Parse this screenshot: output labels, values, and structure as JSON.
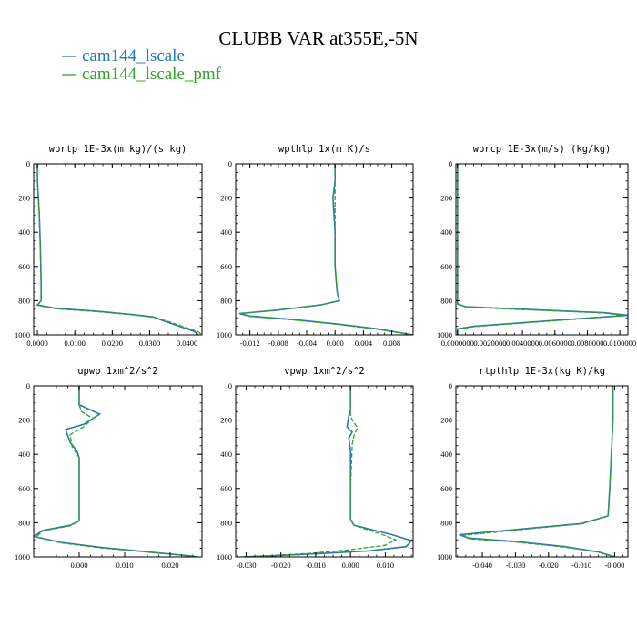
{
  "header": {
    "title": "CLUBB VAR at355E,-5N"
  },
  "colors": {
    "series1": "#2878b8",
    "series2": "#33a02c",
    "axis": "#000000"
  },
  "chart_data": [
    {
      "type": "line",
      "title": "wprtp  1E-3x(m kg)/(s kg)",
      "xlim": [
        -0.001,
        0.044
      ],
      "ylim": [
        1000,
        0
      ],
      "y_reversed": true,
      "xticks": [
        0.0,
        0.01,
        0.02,
        0.03,
        0.04
      ],
      "xtick_labels": [
        "0.0000",
        "0.0100",
        "0.0200",
        "0.0300",
        "0.0400"
      ],
      "yticks": [
        0,
        200,
        400,
        600,
        800,
        1000
      ],
      "series": [
        {
          "name": "cam144_lscale",
          "x": [
            0.0,
            0.0,
            0.0005,
            0.0008,
            0.001,
            0.001,
            0.0,
            0.005,
            0.015,
            0.025,
            0.031,
            0.034,
            0.038,
            0.042,
            0.043
          ],
          "y": [
            0,
            100,
            300,
            500,
            700,
            800,
            825,
            845,
            860,
            880,
            895,
            920,
            950,
            980,
            1000
          ]
        },
        {
          "name": "cam144_lscale_pmf",
          "x": [
            0.0,
            0.0,
            0.0005,
            0.0008,
            0.001,
            0.001,
            0.0,
            0.005,
            0.015,
            0.025,
            0.031,
            0.035,
            0.039,
            0.043,
            0.044
          ],
          "y": [
            0,
            100,
            300,
            500,
            700,
            800,
            828,
            848,
            862,
            882,
            897,
            922,
            952,
            982,
            1000
          ]
        }
      ]
    },
    {
      "type": "line",
      "title": "wpthlp  1x(m K)/s",
      "xlim": [
        -0.014,
        0.011
      ],
      "ylim": [
        1000,
        0
      ],
      "y_reversed": true,
      "xticks": [
        -0.012,
        -0.008,
        -0.004,
        0.0,
        0.004,
        0.008
      ],
      "xtick_labels": [
        "-0.012",
        "-0.008",
        "-0.004",
        "0.000",
        "0.004",
        "0.008"
      ],
      "yticks": [
        0,
        200,
        400,
        600,
        800,
        1000
      ],
      "series": [
        {
          "name": "cam144_lscale",
          "x": [
            0.0,
            0.0,
            -0.0003,
            0.0,
            0.0,
            0.0003,
            0.0006,
            -0.002,
            -0.008,
            -0.0135,
            -0.012,
            -0.006,
            0.0,
            0.006,
            0.011
          ],
          "y": [
            0,
            100,
            200,
            400,
            600,
            750,
            800,
            825,
            855,
            875,
            890,
            910,
            935,
            965,
            1000
          ]
        },
        {
          "name": "cam144_lscale_pmf",
          "x": [
            0.0,
            0.0,
            0.0,
            0.0,
            0.0,
            0.0003,
            0.0006,
            -0.002,
            -0.008,
            -0.0135,
            -0.012,
            -0.006,
            0.0,
            0.006,
            0.011
          ],
          "y": [
            0,
            100,
            200,
            400,
            600,
            750,
            800,
            825,
            855,
            876,
            892,
            912,
            937,
            967,
            1000
          ]
        }
      ]
    },
    {
      "type": "line",
      "title": "wprcp  1E-3x(m/s) (kg/kg)",
      "xlim": [
        -0.0001,
        0.0105
      ],
      "ylim": [
        1000,
        0
      ],
      "y_reversed": true,
      "xticks": [
        0.0,
        0.002,
        0.004,
        0.006,
        0.008,
        0.01
      ],
      "xtick_labels": [
        "0.0000000",
        "0.0020000",
        "0.0040000",
        "0.0060000",
        "0.0080000",
        "0.0100000"
      ],
      "yticks": [
        0,
        200,
        400,
        600,
        800,
        1000
      ],
      "series": [
        {
          "name": "cam144_lscale",
          "x": [
            0.0,
            0.0,
            0.0,
            0.0,
            0.0,
            0.0,
            0.0005,
            0.004,
            0.009,
            0.0105,
            0.006,
            0.001,
            0.0,
            0.0
          ],
          "y": [
            0,
            200,
            400,
            600,
            800,
            820,
            835,
            850,
            870,
            885,
            915,
            950,
            965,
            1000
          ]
        },
        {
          "name": "cam144_lscale_pmf",
          "x": [
            0.0,
            0.0,
            0.0,
            0.0,
            0.0,
            0.0,
            0.0005,
            0.004,
            0.009,
            0.0103,
            0.006,
            0.001,
            0.0,
            0.0
          ],
          "y": [
            0,
            200,
            400,
            600,
            800,
            820,
            837,
            852,
            872,
            888,
            917,
            952,
            967,
            1000
          ]
        }
      ]
    },
    {
      "type": "line",
      "title": "upwp  1xm^2/s^2",
      "xlim": [
        -0.01,
        0.027
      ],
      "ylim": [
        1000,
        0
      ],
      "y_reversed": true,
      "xticks": [
        0.0,
        0.01,
        0.02
      ],
      "xtick_labels": [
        "0.000",
        "0.010",
        "0.020"
      ],
      "yticks": [
        0,
        200,
        400,
        600,
        800,
        1000
      ],
      "series": [
        {
          "name": "cam144_lscale",
          "x": [
            0.0,
            0.0,
            0.0045,
            0.001,
            -0.003,
            -0.002,
            -0.0005,
            0.0,
            0.0,
            0.0,
            -0.002,
            -0.008,
            -0.01,
            -0.004,
            0.005,
            0.015,
            0.024,
            0.026
          ],
          "y": [
            0,
            110,
            165,
            225,
            255,
            330,
            380,
            420,
            600,
            790,
            815,
            845,
            880,
            915,
            945,
            970,
            993,
            1000
          ]
        },
        {
          "name": "cam144_lscale_pmf",
          "x": [
            0.0,
            0.0,
            0.0005,
            0.003,
            0.001,
            -0.002,
            -0.0015,
            0.0,
            0.0,
            0.0,
            -0.002,
            -0.008,
            -0.0095,
            -0.004,
            0.005,
            0.015,
            0.024,
            0.026
          ],
          "y": [
            0,
            110,
            150,
            190,
            240,
            285,
            360,
            420,
            600,
            790,
            818,
            848,
            883,
            918,
            948,
            972,
            994,
            1000
          ]
        }
      ]
    },
    {
      "type": "line",
      "title": "vpwp  1xm^2/s^2",
      "xlim": [
        -0.033,
        0.018
      ],
      "ylim": [
        1000,
        0
      ],
      "y_reversed": true,
      "xticks": [
        -0.03,
        -0.02,
        -0.01,
        0.0,
        0.01
      ],
      "xtick_labels": [
        "-0.030",
        "-0.020",
        "-0.010",
        "0.000",
        "0.010"
      ],
      "yticks": [
        0,
        200,
        400,
        600,
        800,
        1000
      ],
      "series": [
        {
          "name": "cam144_lscale",
          "x": [
            0.0,
            0.0,
            -0.0005,
            -0.001,
            0.0005,
            -0.0005,
            0.0,
            0.0,
            0.0,
            0.001,
            0.006,
            0.012,
            0.0175,
            0.016,
            0.005,
            -0.01,
            -0.022,
            -0.031
          ],
          "y": [
            0,
            140,
            175,
            240,
            270,
            305,
            380,
            600,
            780,
            815,
            840,
            870,
            905,
            940,
            965,
            982,
            993,
            1000
          ]
        },
        {
          "name": "cam144_lscale_pmf",
          "x": [
            0.0,
            0.0,
            0.0,
            0.001,
            0.002,
            0.001,
            0.0005,
            0.0,
            0.0,
            0.001,
            0.005,
            0.009,
            0.013,
            0.01,
            0.0,
            -0.012,
            -0.024,
            -0.031
          ],
          "y": [
            0,
            140,
            180,
            215,
            245,
            290,
            340,
            600,
            780,
            815,
            842,
            868,
            900,
            932,
            958,
            980,
            993,
            1000
          ]
        }
      ]
    },
    {
      "type": "line",
      "title": "rtpthlp  1E-3x(kg K)/kg",
      "xlim": [
        -0.048,
        0.004
      ],
      "ylim": [
        1000,
        0
      ],
      "y_reversed": true,
      "xticks": [
        -0.04,
        -0.03,
        -0.02,
        -0.01,
        0.0
      ],
      "xtick_labels": [
        "-0.040",
        "-0.030",
        "-0.020",
        "-0.010",
        "-0.000"
      ],
      "yticks": [
        0,
        200,
        400,
        600,
        800,
        1000
      ],
      "series": [
        {
          "name": "cam144_lscale",
          "x": [
            -0.0005,
            -0.0005,
            -0.001,
            -0.0015,
            -0.002,
            -0.01,
            -0.03,
            -0.047,
            -0.044,
            -0.03,
            -0.015,
            -0.005,
            0.0
          ],
          "y": [
            0,
            200,
            400,
            600,
            760,
            805,
            840,
            870,
            890,
            910,
            940,
            970,
            1000
          ]
        },
        {
          "name": "cam144_lscale_pmf",
          "x": [
            -0.0005,
            -0.0005,
            -0.001,
            -0.0015,
            -0.002,
            -0.01,
            -0.03,
            -0.046,
            -0.044,
            -0.03,
            -0.015,
            -0.005,
            0.0
          ],
          "y": [
            0,
            200,
            400,
            600,
            760,
            807,
            843,
            874,
            894,
            913,
            943,
            972,
            1000
          ]
        }
      ]
    }
  ]
}
